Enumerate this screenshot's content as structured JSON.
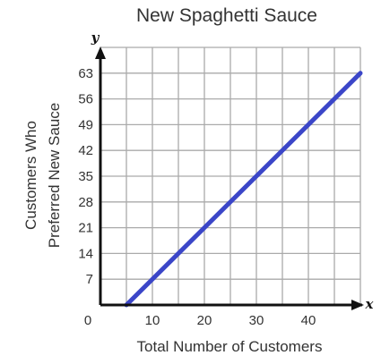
{
  "chart_data": {
    "type": "line",
    "title": "New Spaghetti Sauce",
    "xlabel": "Total Number of Customers",
    "ylabel_lines": [
      "Customers Who",
      "Preferred New Sauce"
    ],
    "x_axis_var": "x",
    "y_axis_var": "y",
    "origin_label": "0",
    "xlim": [
      0,
      50
    ],
    "ylim": [
      0,
      70
    ],
    "x_grid_step": 5,
    "y_grid_step": 7,
    "xticks": [
      {
        "value": 10,
        "label": "10"
      },
      {
        "value": 20,
        "label": "20"
      },
      {
        "value": 30,
        "label": "30"
      },
      {
        "value": 40,
        "label": "40"
      }
    ],
    "yticks": [
      {
        "value": 7,
        "label": "7"
      },
      {
        "value": 14,
        "label": "14"
      },
      {
        "value": 21,
        "label": "21"
      },
      {
        "value": 28,
        "label": "28"
      },
      {
        "value": 35,
        "label": "35"
      },
      {
        "value": 42,
        "label": "42"
      },
      {
        "value": 49,
        "label": "49"
      },
      {
        "value": 56,
        "label": "56"
      },
      {
        "value": 63,
        "label": "63"
      }
    ],
    "series": [
      {
        "points": [
          [
            5,
            0
          ],
          [
            50,
            63
          ]
        ],
        "color": "#3b46c8"
      }
    ],
    "grid": true,
    "grid_color": "#aaaaaa",
    "axis_color": "#111111"
  }
}
